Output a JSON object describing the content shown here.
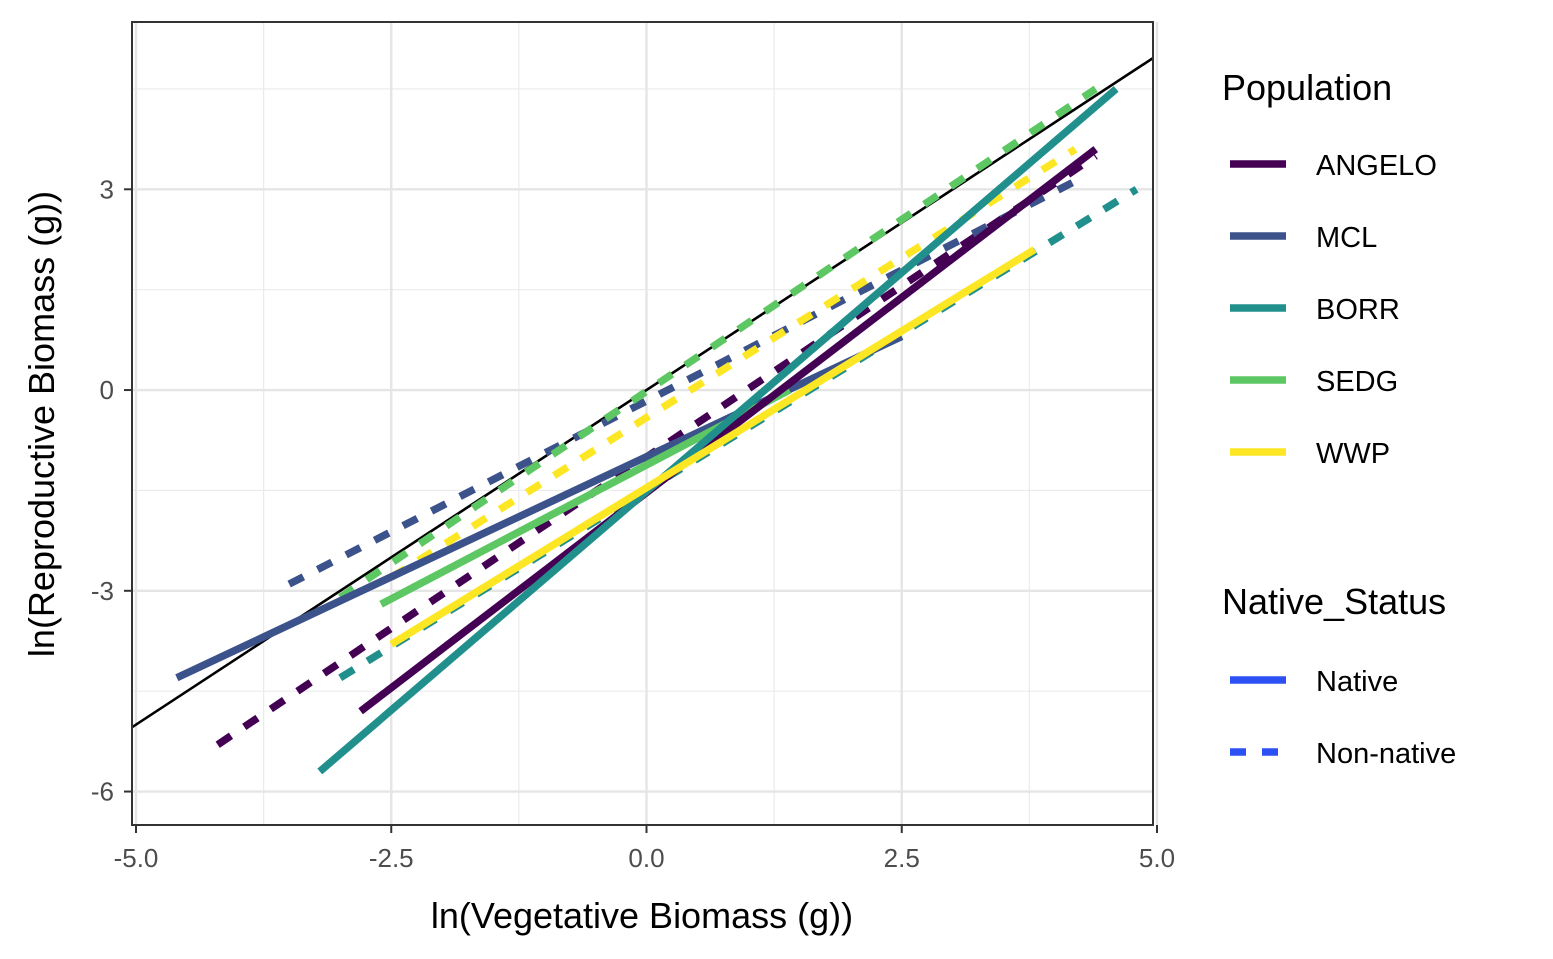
{
  "chart_data": {
    "type": "line",
    "title": "",
    "xlabel": "ln(Vegetative Biomass (g))",
    "ylabel": "ln(Reproductive Biomass (g))",
    "xlim": [
      -5.0,
      5.0
    ],
    "ylim": [
      -6.5,
      5.5
    ],
    "x_ticks": [
      "-5.0",
      "-2.5",
      "0.0",
      "2.5",
      "5.0"
    ],
    "y_ticks": [
      "-6",
      "-3",
      "0",
      "3"
    ],
    "grid": true,
    "legend_position": "right",
    "reference_line": {
      "description": "1:1 line",
      "color": "#000000",
      "points": [
        [
          -5.05,
          -5.05
        ],
        [
          5.2,
          5.2
        ]
      ]
    },
    "legends": [
      {
        "title": "Population",
        "entries": [
          {
            "label": "ANGELO",
            "color": "#440154"
          },
          {
            "label": "MCL",
            "color": "#3B528B"
          },
          {
            "label": "BORR",
            "color": "#21908C"
          },
          {
            "label": "SEDG",
            "color": "#5DC863"
          },
          {
            "label": "WWP",
            "color": "#FDE725"
          }
        ]
      },
      {
        "title": "Native_Status",
        "entries": [
          {
            "label": "Native",
            "linetype": "solid",
            "color": "#2D50F2"
          },
          {
            "label": "Non-native",
            "linetype": "dashed",
            "color": "#2D50F2"
          }
        ]
      }
    ],
    "series": [
      {
        "population": "ANGELO",
        "status": "Non-native",
        "color": "#440154",
        "dashed": true,
        "x": [
          -4.2,
          4.4
        ],
        "y": [
          -5.3,
          3.5
        ]
      },
      {
        "population": "MCL",
        "status": "Non-native",
        "color": "#3B528B",
        "dashed": true,
        "x": [
          -3.5,
          4.3
        ],
        "y": [
          -2.9,
          3.2
        ]
      },
      {
        "population": "BORR",
        "status": "Non-native",
        "color": "#21908C",
        "dashed": true,
        "x": [
          -3.0,
          4.8
        ],
        "y": [
          -4.3,
          3.0
        ]
      },
      {
        "population": "SEDG",
        "status": "Non-native",
        "color": "#5DC863",
        "dashed": true,
        "x": [
          -3.0,
          4.4
        ],
        "y": [
          -3.1,
          4.5
        ]
      },
      {
        "population": "WWP",
        "status": "Non-native",
        "color": "#FDE725",
        "dashed": true,
        "x": [
          -2.5,
          4.2
        ],
        "y": [
          -2.8,
          3.6
        ]
      },
      {
        "population": "MCL",
        "status": "Native",
        "color": "#3B528B",
        "dashed": false,
        "x": [
          -4.6,
          2.5
        ],
        "y": [
          -4.3,
          0.8
        ]
      },
      {
        "population": "SEDG",
        "status": "Native",
        "color": "#5DC863",
        "dashed": false,
        "x": [
          -2.6,
          1.4
        ],
        "y": [
          -3.2,
          0.0
        ]
      },
      {
        "population": "ANGELO",
        "status": "Native",
        "color": "#440154",
        "dashed": false,
        "x": [
          -2.8,
          4.4
        ],
        "y": [
          -4.8,
          3.6
        ]
      },
      {
        "population": "BORR",
        "status": "Native",
        "color": "#21908C",
        "dashed": false,
        "x": [
          -3.2,
          4.6
        ],
        "y": [
          -5.7,
          4.5
        ]
      },
      {
        "population": "WWP",
        "status": "Native",
        "color": "#FDE725",
        "dashed": false,
        "x": [
          -2.5,
          3.8
        ],
        "y": [
          -3.8,
          2.1
        ]
      }
    ]
  }
}
